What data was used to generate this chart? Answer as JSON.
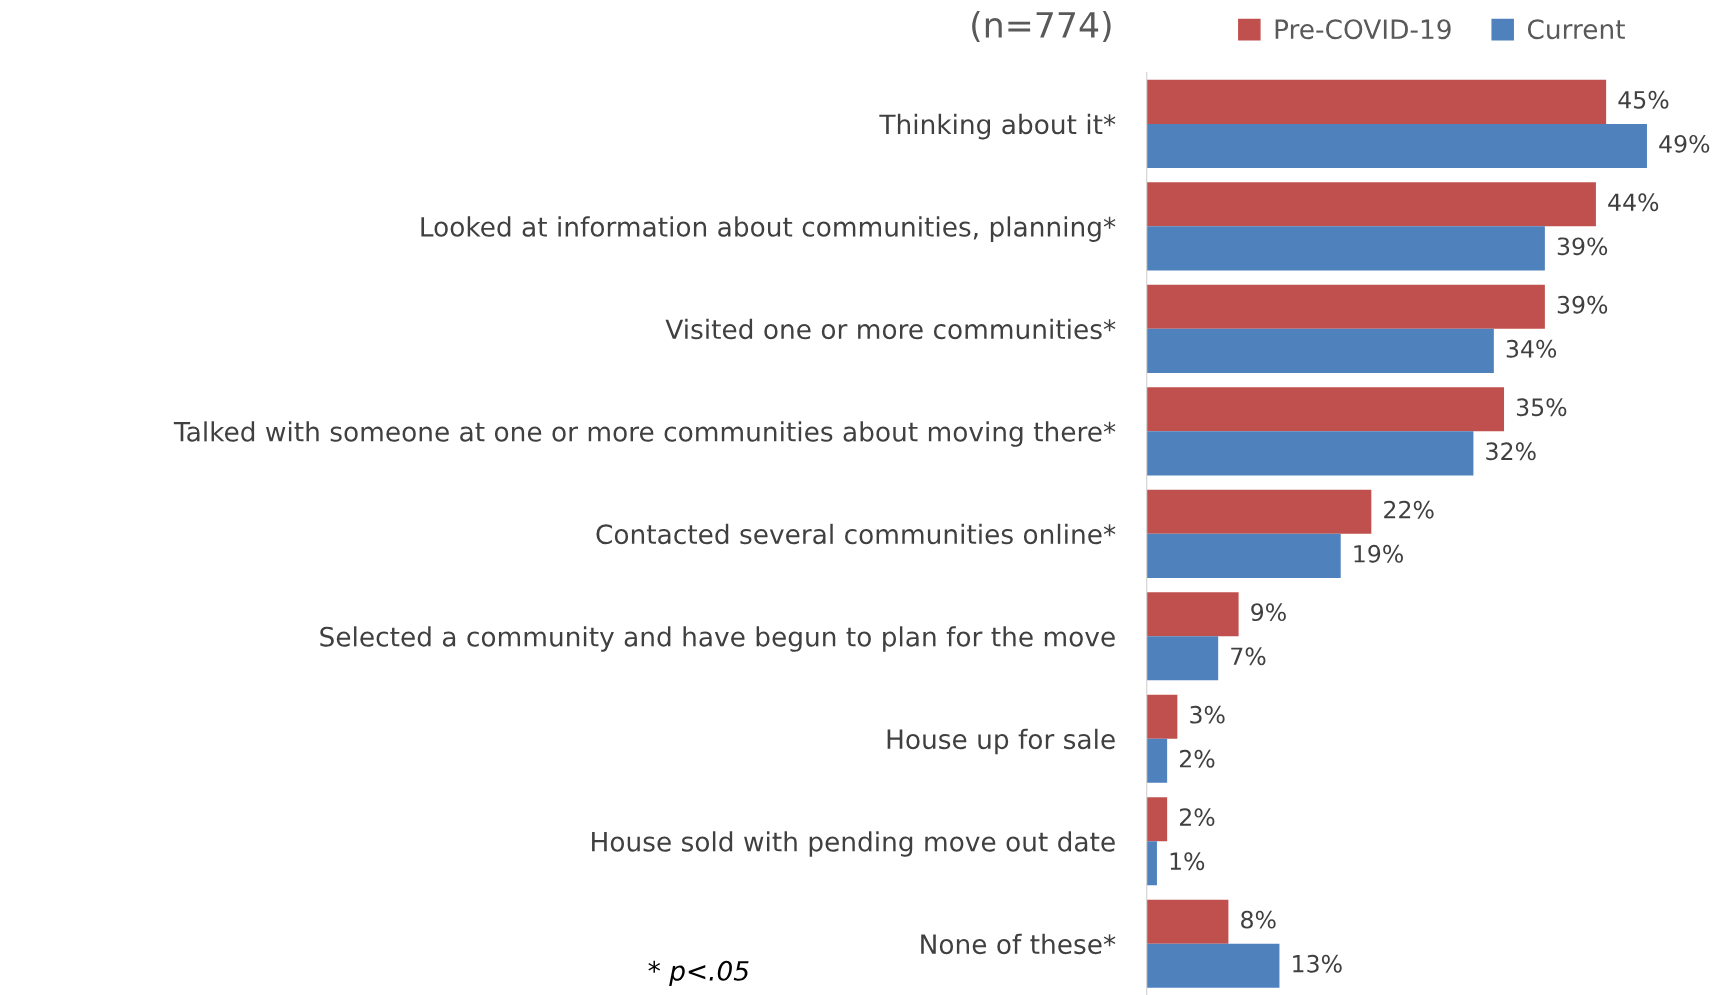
{
  "chart_data": {
    "type": "bar",
    "orientation": "horizontal",
    "title": "(n=774)",
    "legend": "top right",
    "categories": [
      "Thinking about it*",
      "Looked at information about communities, planning*",
      "Visited one or more communities*",
      "Talked with someone at one or more communities about moving there*",
      "Contacted several communities online*",
      "Selected a community and have begun to plan for the move",
      "House up for sale",
      "House sold with pending move out date",
      "None of these*"
    ],
    "series": [
      {
        "name": "Pre-COVID-19",
        "color": "#c0504d",
        "values": [
          45,
          44,
          39,
          35,
          22,
          9,
          3,
          2,
          8
        ],
        "value_labels": [
          "45%",
          "44%",
          "39%",
          "35%",
          "22%",
          "9%",
          "3%",
          "2%",
          "8%"
        ]
      },
      {
        "name": "Current",
        "color": "#4f81bd",
        "values": [
          49,
          39,
          34,
          32,
          19,
          7,
          2,
          1,
          13
        ],
        "value_labels": [
          "49%",
          "39%",
          "34%",
          "32%",
          "19%",
          "7%",
          "2%",
          "1%",
          "13%"
        ]
      }
    ],
    "annotations": [
      "* p<.05"
    ]
  }
}
